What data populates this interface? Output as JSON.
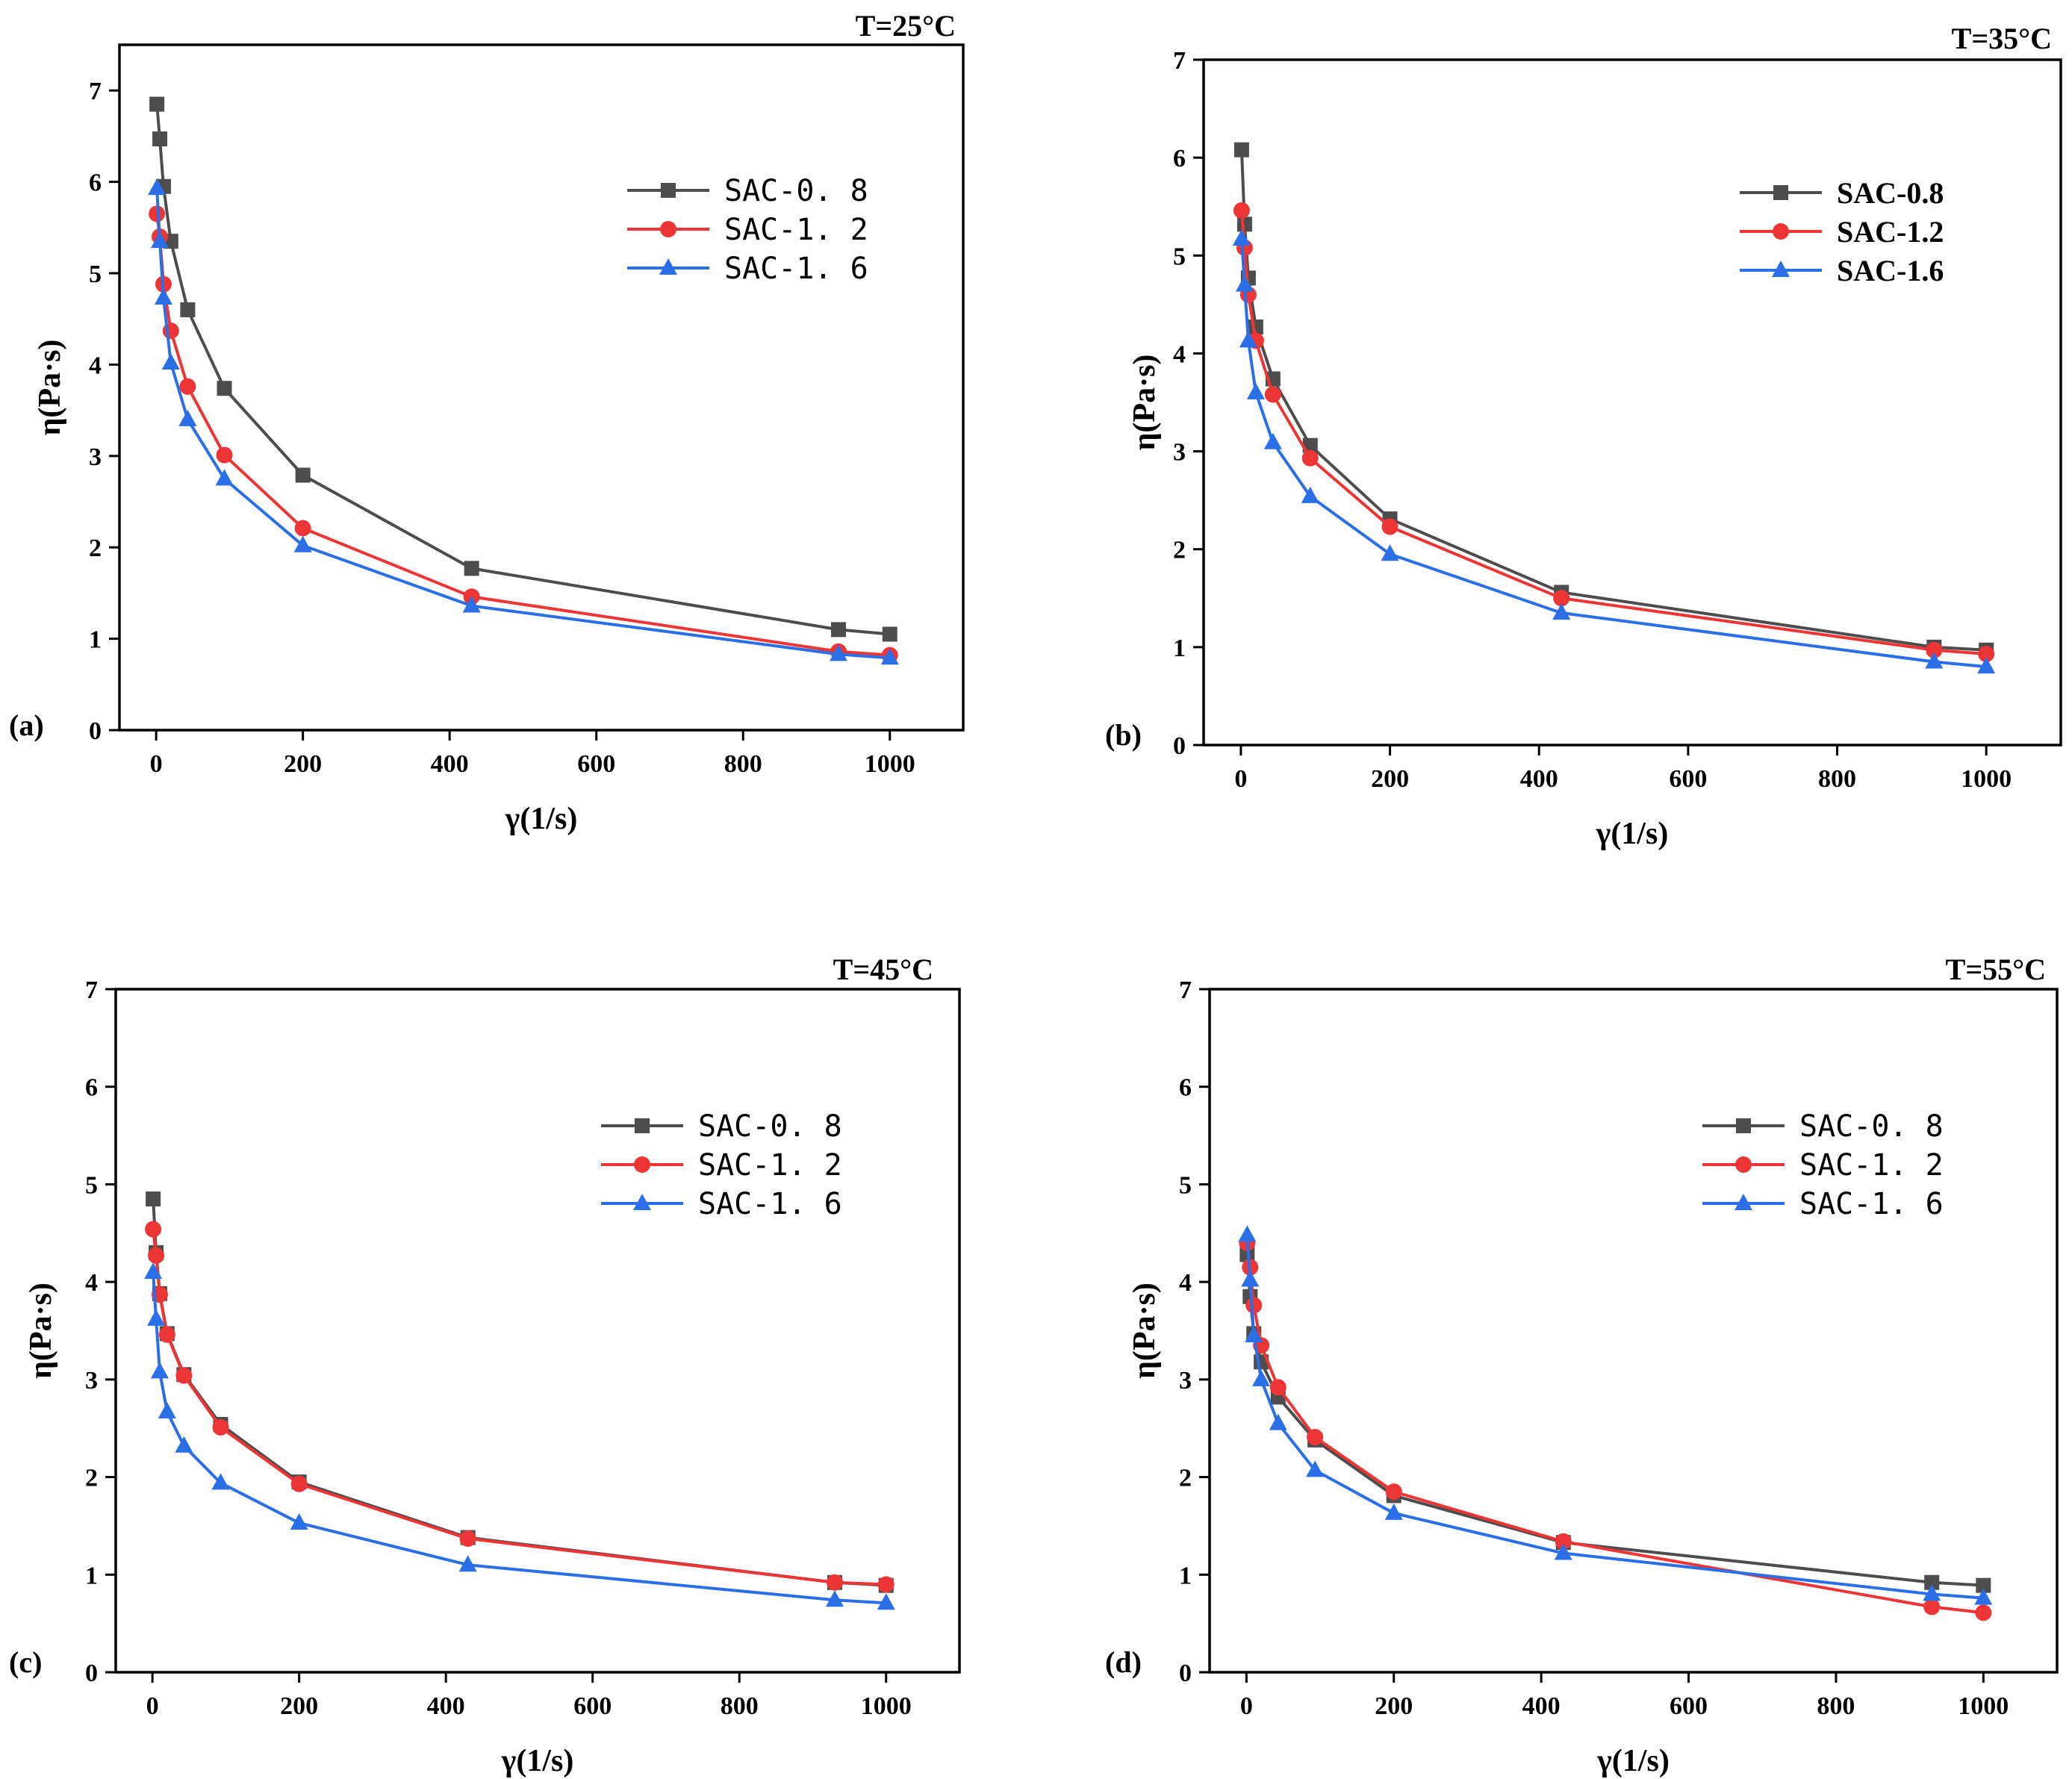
{
  "colors": {
    "SAC-0.8": "#4d4d4d",
    "SAC-1.2": "#ee3535",
    "SAC-1.6": "#2a6ee8"
  },
  "chart_data": [
    {
      "type": "line",
      "panel": "(a)",
      "title": "T=25°C",
      "xlabel": "γ(1/s)",
      "ylabel": "η(Pa·s)",
      "xlim": [
        -50,
        1100
      ],
      "ylim": [
        0,
        7.5
      ],
      "xticks": [
        0,
        200,
        400,
        600,
        800,
        1000
      ],
      "yticks": [
        0,
        1,
        2,
        3,
        4,
        5,
        6,
        7
      ],
      "legend_style": "mono",
      "legend_position": "upper-right",
      "series": [
        {
          "name": "SAC-0.8",
          "marker": "square",
          "x": [
            1,
            5,
            10,
            20,
            43,
            93,
            200,
            430,
            930,
            1000
          ],
          "y": [
            6.85,
            6.47,
            5.95,
            5.35,
            4.6,
            3.74,
            2.79,
            1.77,
            1.1,
            1.05
          ]
        },
        {
          "name": "SAC-1.2",
          "marker": "circle",
          "x": [
            1,
            5,
            10,
            20,
            43,
            93,
            200,
            430,
            930,
            1000
          ],
          "y": [
            5.65,
            5.4,
            4.88,
            4.37,
            3.76,
            3.01,
            2.21,
            1.46,
            0.86,
            0.82
          ]
        },
        {
          "name": "SAC-1.6",
          "marker": "triangle",
          "x": [
            1,
            5,
            10,
            20,
            43,
            93,
            200,
            430,
            930,
            1000
          ],
          "y": [
            5.93,
            5.35,
            4.73,
            4.02,
            3.4,
            2.75,
            2.02,
            1.36,
            0.83,
            0.79
          ]
        }
      ]
    },
    {
      "type": "line",
      "panel": "(b)",
      "title": "T=35°C",
      "xlabel": "γ(1/s)",
      "ylabel": "η(Pa·s)",
      "xlim": [
        -50,
        1100
      ],
      "ylim": [
        0,
        7
      ],
      "xticks": [
        0,
        200,
        400,
        600,
        800,
        1000
      ],
      "yticks": [
        0,
        1,
        2,
        3,
        4,
        5,
        6,
        7
      ],
      "legend_style": "bold",
      "legend_position": "upper-right",
      "series": [
        {
          "name": "SAC-0.8",
          "marker": "square",
          "x": [
            1,
            5,
            10,
            20,
            43,
            93,
            200,
            430,
            930,
            1000
          ],
          "y": [
            6.08,
            5.32,
            4.77,
            4.27,
            3.74,
            3.06,
            2.31,
            1.56,
            1.0,
            0.97
          ]
        },
        {
          "name": "SAC-1.2",
          "marker": "circle",
          "x": [
            1,
            5,
            10,
            20,
            43,
            93,
            200,
            430,
            930,
            1000
          ],
          "y": [
            5.46,
            5.08,
            4.6,
            4.13,
            3.58,
            2.93,
            2.23,
            1.5,
            0.97,
            0.93
          ]
        },
        {
          "name": "SAC-1.6",
          "marker": "triangle",
          "x": [
            1,
            5,
            10,
            20,
            43,
            93,
            200,
            430,
            930,
            1000
          ],
          "y": [
            5.17,
            4.7,
            4.13,
            3.6,
            3.09,
            2.54,
            1.95,
            1.35,
            0.85,
            0.8
          ]
        }
      ]
    },
    {
      "type": "line",
      "panel": "(c)",
      "title": "T=45°C",
      "xlabel": "γ(1/s)",
      "ylabel": "η(Pa·s)",
      "xlim": [
        -50,
        1100
      ],
      "ylim": [
        0,
        7
      ],
      "xticks": [
        0,
        200,
        400,
        600,
        800,
        1000
      ],
      "yticks": [
        0,
        1,
        2,
        3,
        4,
        5,
        6,
        7
      ],
      "legend_style": "mono",
      "legend_position": "upper-right",
      "series": [
        {
          "name": "SAC-0.8",
          "marker": "square",
          "x": [
            1,
            5,
            10,
            20,
            43,
            93,
            200,
            430,
            930,
            1000
          ],
          "y": [
            4.85,
            4.3,
            3.88,
            3.47,
            3.05,
            2.54,
            1.95,
            1.38,
            0.92,
            0.89
          ]
        },
        {
          "name": "SAC-1.2",
          "marker": "circle",
          "x": [
            1,
            5,
            10,
            20,
            43,
            93,
            200,
            430,
            930,
            1000
          ],
          "y": [
            4.54,
            4.27,
            3.87,
            3.46,
            3.04,
            2.51,
            1.93,
            1.37,
            0.92,
            0.9
          ]
        },
        {
          "name": "SAC-1.6",
          "marker": "triangle",
          "x": [
            1,
            5,
            10,
            20,
            43,
            93,
            200,
            430,
            930,
            1000
          ],
          "y": [
            4.1,
            3.62,
            3.08,
            2.67,
            2.32,
            1.94,
            1.53,
            1.1,
            0.74,
            0.71
          ]
        }
      ]
    },
    {
      "type": "line",
      "panel": "(d)",
      "title": "T=55°C",
      "xlabel": "γ(1/s)",
      "ylabel": "η(Pa·s)",
      "xlim": [
        -50,
        1100
      ],
      "ylim": [
        0,
        7
      ],
      "xticks": [
        0,
        200,
        400,
        600,
        800,
        1000
      ],
      "yticks": [
        0,
        1,
        2,
        3,
        4,
        5,
        6,
        7
      ],
      "legend_style": "mono",
      "legend_position": "upper-right",
      "series": [
        {
          "name": "SAC-0.8",
          "marker": "square",
          "x": [
            1,
            5,
            10,
            20,
            43,
            93,
            200,
            430,
            930,
            1000
          ],
          "y": [
            4.28,
            3.85,
            3.47,
            3.18,
            2.82,
            2.38,
            1.81,
            1.33,
            0.92,
            0.89
          ]
        },
        {
          "name": "SAC-1.2",
          "marker": "circle",
          "x": [
            1,
            5,
            10,
            20,
            43,
            93,
            200,
            430,
            930,
            1000
          ],
          "y": [
            4.4,
            4.15,
            3.76,
            3.35,
            2.92,
            2.41,
            1.85,
            1.34,
            0.67,
            0.61
          ]
        },
        {
          "name": "SAC-1.6",
          "marker": "triangle",
          "x": [
            1,
            5,
            10,
            20,
            43,
            93,
            200,
            430,
            930,
            1000
          ],
          "y": [
            4.48,
            4.02,
            3.45,
            3.0,
            2.55,
            2.07,
            1.63,
            1.22,
            0.8,
            0.76
          ]
        }
      ]
    }
  ]
}
